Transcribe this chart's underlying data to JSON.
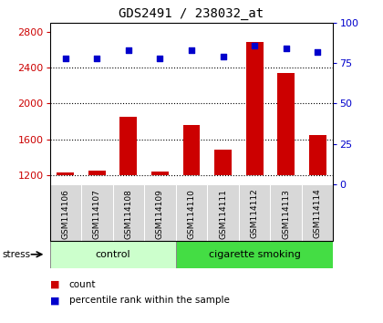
{
  "title": "GDS2491 / 238032_at",
  "samples": [
    "GSM114106",
    "GSM114107",
    "GSM114108",
    "GSM114109",
    "GSM114110",
    "GSM114111",
    "GSM114112",
    "GSM114113",
    "GSM114114"
  ],
  "counts": [
    1230,
    1250,
    1850,
    1240,
    1760,
    1480,
    2680,
    2340,
    1650
  ],
  "percentiles": [
    78,
    78,
    83,
    78,
    83,
    79,
    86,
    84,
    82
  ],
  "groups": [
    {
      "label": "control",
      "start": 0,
      "end": 4,
      "color": "#ccffcc"
    },
    {
      "label": "cigarette smoking",
      "start": 4,
      "end": 9,
      "color": "#44dd44"
    }
  ],
  "ylim_left": [
    1100,
    2900
  ],
  "ylim_right": [
    0,
    100
  ],
  "yticks_left": [
    1200,
    1600,
    2000,
    2400,
    2800
  ],
  "yticks_right": [
    0,
    25,
    50,
    75,
    100
  ],
  "bar_color": "#cc0000",
  "dot_color": "#0000cc",
  "bar_width": 0.55,
  "grid_color": "#000000",
  "background_color": "#ffffff",
  "label_color_left": "#cc0000",
  "label_color_right": "#0000cc",
  "stress_label": "stress",
  "legend_items": [
    {
      "label": "count",
      "color": "#cc0000"
    },
    {
      "label": "percentile rank within the sample",
      "color": "#0000cc"
    }
  ],
  "bar_bottom": 1200
}
